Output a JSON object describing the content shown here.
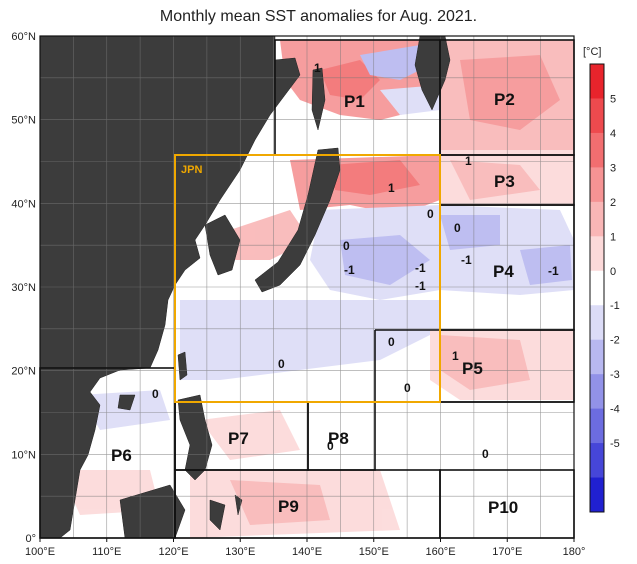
{
  "title": "Monthly mean SST anomalies for Aug. 2021.",
  "map": {
    "lon_ticks": [
      "100°E",
      "110°E",
      "120°E",
      "130°E",
      "140°E",
      "150°E",
      "160°E",
      "170°E",
      "180°"
    ],
    "lat_ticks": [
      "0°",
      "10°N",
      "20°N",
      "30°N",
      "40°N",
      "50°N",
      "60°N"
    ],
    "lon_range": [
      100,
      180
    ],
    "lat_range": [
      0,
      60
    ],
    "land_color": "#3c3c3c",
    "ocean_color": "#ffffff",
    "gridlines": true,
    "jpn_box_color": "#f0a800",
    "jpn_label": "JPN",
    "regions": [
      {
        "id": "P1",
        "label": "P1"
      },
      {
        "id": "P2",
        "label": "P2"
      },
      {
        "id": "P3",
        "label": "P3"
      },
      {
        "id": "P4",
        "label": "P4"
      },
      {
        "id": "P5",
        "label": "P5"
      },
      {
        "id": "P6",
        "label": "P6"
      },
      {
        "id": "P7",
        "label": "P7"
      },
      {
        "id": "P8",
        "label": "P8"
      },
      {
        "id": "P9",
        "label": "P9"
      },
      {
        "id": "P10",
        "label": "P10"
      }
    ],
    "contour_labels": [
      "1",
      "1",
      "1",
      "0",
      "0",
      "-1",
      "-1",
      "-1",
      "-1",
      "-1",
      "0",
      "0",
      "0",
      "0",
      "1",
      "0",
      "0",
      "0"
    ]
  },
  "colorbar": {
    "unit": "[°C]",
    "labels": [
      "5",
      "4",
      "3",
      "2",
      "1",
      "0",
      "-1",
      "-2",
      "-3",
      "-4",
      "-5"
    ],
    "colors": [
      "#e8242c",
      "#ee4a4e",
      "#f26e70",
      "#f69394",
      "#f9b6b6",
      "#fcd9d9",
      "#ffffff",
      "#dcdcf7",
      "#b8b8f0",
      "#9292e8",
      "#6c6ce0",
      "#4646d8",
      "#2020d0"
    ]
  }
}
